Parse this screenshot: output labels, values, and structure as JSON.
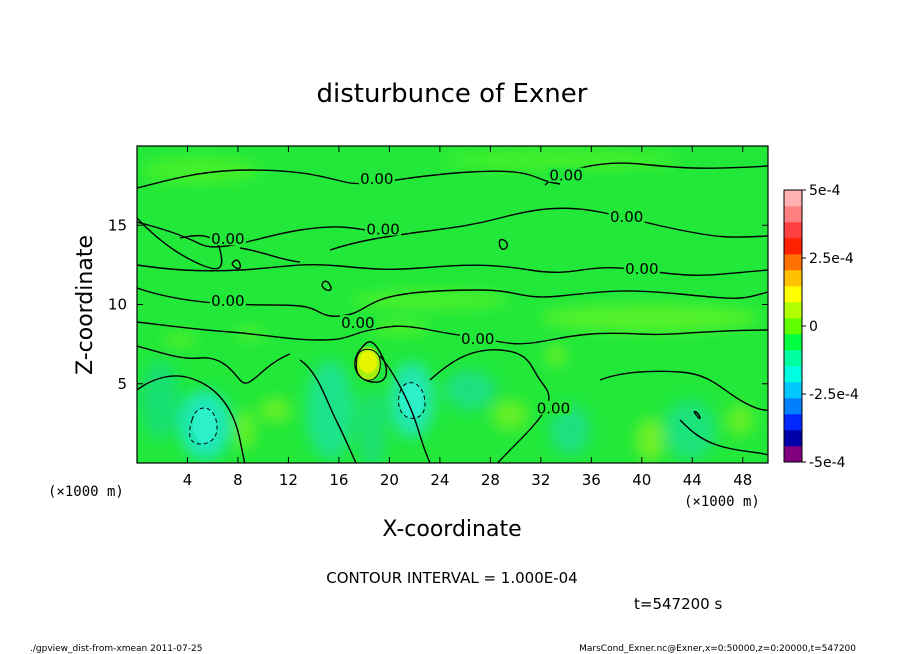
{
  "chart_data": {
    "type": "heatmap",
    "title": "disturbunce of Exner",
    "xlabel": "X-coordinate",
    "ylabel": "Z-coordinate",
    "x_unit": "(×1000 m)",
    "x_unit_right": "(×1000 m)",
    "xlim": [
      0,
      50
    ],
    "ylim": [
      0,
      20
    ],
    "xticks": [
      4,
      8,
      12,
      16,
      20,
      24,
      28,
      32,
      36,
      40,
      44,
      48
    ],
    "yticks": [
      5,
      10,
      15
    ],
    "colorbar": {
      "min": -0.0005,
      "max": 0.0005,
      "tick_labels": [
        "5e-4",
        "2.5e-4",
        "0",
        "-2.5e-4",
        "-5e-4"
      ],
      "tick_values": [
        0.0005,
        0.00025,
        0,
        -0.00025,
        -0.0005
      ],
      "colors": [
        "#800080",
        "#0000aa",
        "#0028ff",
        "#0080ff",
        "#00c8ff",
        "#00ffe0",
        "#00ffa0",
        "#00ff40",
        "#60ff00",
        "#b0ff00",
        "#ffff00",
        "#ffc000",
        "#ff7000",
        "#ff2000",
        "#ff4040",
        "#ff8080",
        "#ffb0b0"
      ]
    },
    "contour_interval_text": "CONTOUR INTERVAL = 1.000E-04",
    "contour_labels": [
      {
        "text": "0.00",
        "x": 19.0,
        "y": 17.8
      },
      {
        "text": "0.00",
        "x": 34.0,
        "y": 18.0
      },
      {
        "text": "0.00",
        "x": 7.2,
        "y": 14.0
      },
      {
        "text": "0.00",
        "x": 19.5,
        "y": 14.6
      },
      {
        "text": "0.00",
        "x": 38.8,
        "y": 15.4
      },
      {
        "text": "0.00",
        "x": 40.0,
        "y": 12.1
      },
      {
        "text": "0.00",
        "x": 7.2,
        "y": 10.1
      },
      {
        "text": "0.00",
        "x": 17.5,
        "y": 8.7
      },
      {
        "text": "0.00",
        "x": 27.0,
        "y": 7.7
      },
      {
        "text": "0.00",
        "x": 33.0,
        "y": 3.3
      }
    ],
    "time_text": "t=547200 s"
  },
  "footer": {
    "left": "./gpview_dist-from-xmean 2011-07-25",
    "right": "MarsCond_Exner.nc@Exner,x=0:50000,z=0:20000,t=547200"
  },
  "colors": {
    "background_field": "#22e83a",
    "frame": "#000000"
  }
}
